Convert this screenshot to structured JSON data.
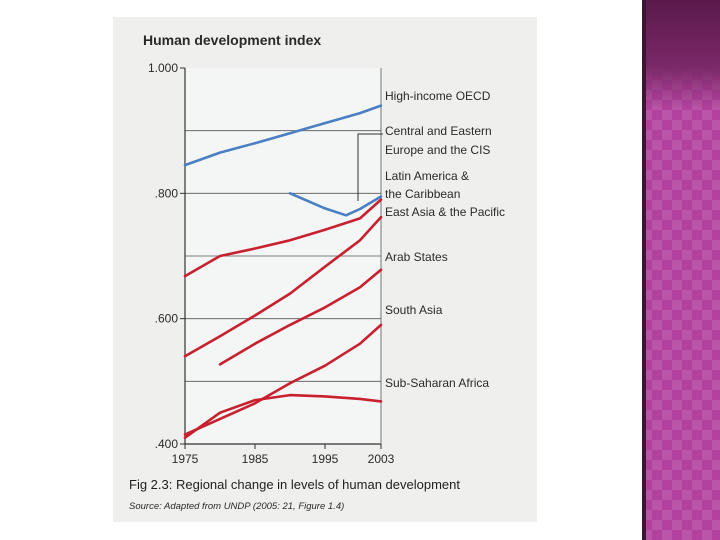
{
  "colors": {
    "blue_series": "#4a7fc4",
    "red_series": "#c8202f",
    "ink": "#2a2a2a",
    "accent_panel": "#b3429f"
  },
  "figure": {
    "caption": "Fig 2.3: Regional change in levels of human development",
    "source": "Source: Adapted from UNDP (2005: 21, Figure 1.4)"
  },
  "chart_data": {
    "type": "line",
    "title": "Human development index",
    "xlabel": "",
    "ylabel": "",
    "xlim": [
      1975,
      2003
    ],
    "ylim": [
      0.4,
      1.0
    ],
    "x_ticks": [
      1975,
      1985,
      1995,
      2003
    ],
    "x_tick_labels": [
      "1975",
      "1985",
      "1995",
      "2003"
    ],
    "y_ticks": [
      0.4,
      0.6,
      0.8,
      1.0
    ],
    "y_tick_labels": [
      ".400",
      ".600",
      ".800",
      "1.000"
    ],
    "grid": "horizontal",
    "legend": "right, direct labels",
    "series": [
      {
        "name": "High-income OECD",
        "color": "#4a7fc4",
        "x": [
          1975,
          1980,
          1985,
          1990,
          1995,
          2000,
          2003
        ],
        "y": [
          0.845,
          0.865,
          0.88,
          0.896,
          0.912,
          0.928,
          0.94
        ]
      },
      {
        "name": "Central and Eastern Europe and the CIS",
        "color": "#4a7fc4",
        "x": [
          1990,
          1995,
          1998,
          2000,
          2003
        ],
        "y": [
          0.8,
          0.776,
          0.765,
          0.775,
          0.795
        ]
      },
      {
        "name": "Latin America & the Caribbean",
        "color": "#c8202f",
        "x": [
          1975,
          1980,
          1985,
          1990,
          1995,
          2000,
          2003
        ],
        "y": [
          0.668,
          0.7,
          0.712,
          0.725,
          0.742,
          0.76,
          0.79
        ]
      },
      {
        "name": "East Asia & the Pacific",
        "color": "#c8202f",
        "x": [
          1975,
          1980,
          1985,
          1990,
          1995,
          2000,
          2003
        ],
        "y": [
          0.54,
          0.572,
          0.605,
          0.64,
          0.683,
          0.725,
          0.762
        ]
      },
      {
        "name": "Arab States",
        "color": "#c8202f",
        "x": [
          1980,
          1985,
          1990,
          1995,
          2000,
          2003
        ],
        "y": [
          0.527,
          0.56,
          0.59,
          0.618,
          0.65,
          0.678
        ]
      },
      {
        "name": "South Asia",
        "color": "#c8202f",
        "x": [
          1975,
          1980,
          1985,
          1990,
          1995,
          2000,
          2003
        ],
        "y": [
          0.415,
          0.44,
          0.465,
          0.497,
          0.525,
          0.56,
          0.59
        ]
      },
      {
        "name": "Sub-Saharan Africa",
        "color": "#c8202f",
        "x": [
          1975,
          1980,
          1985,
          1990,
          1995,
          2000,
          2003
        ],
        "y": [
          0.41,
          0.45,
          0.47,
          0.478,
          0.476,
          0.472,
          0.468
        ]
      }
    ]
  }
}
